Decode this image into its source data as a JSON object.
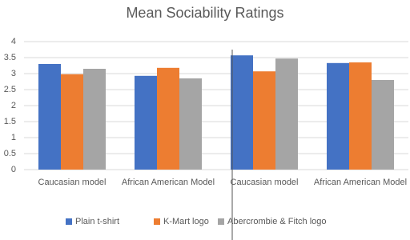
{
  "chart_data": {
    "type": "bar",
    "title": "Mean Sociability Ratings",
    "categories": [
      "Caucasian model",
      "African American Model",
      "Caucasian model",
      "African American Model"
    ],
    "series": [
      {
        "name": "Plain t-shirt",
        "color": "#4472c4",
        "values": [
          3.3,
          2.93,
          3.57,
          3.33
        ]
      },
      {
        "name": "K-Mart logo",
        "color": "#ed7d31",
        "values": [
          2.98,
          3.18,
          3.07,
          3.35
        ]
      },
      {
        "name": "Abercrombie & Fitch logo",
        "color": "#a5a5a5",
        "values": [
          3.15,
          2.85,
          3.47,
          2.8
        ]
      }
    ],
    "ylim": [
      0,
      4
    ],
    "yticks": [
      0,
      0.5,
      1,
      1.5,
      2,
      2.5,
      3,
      3.5,
      4
    ],
    "grid": true,
    "legend": "bottom"
  }
}
